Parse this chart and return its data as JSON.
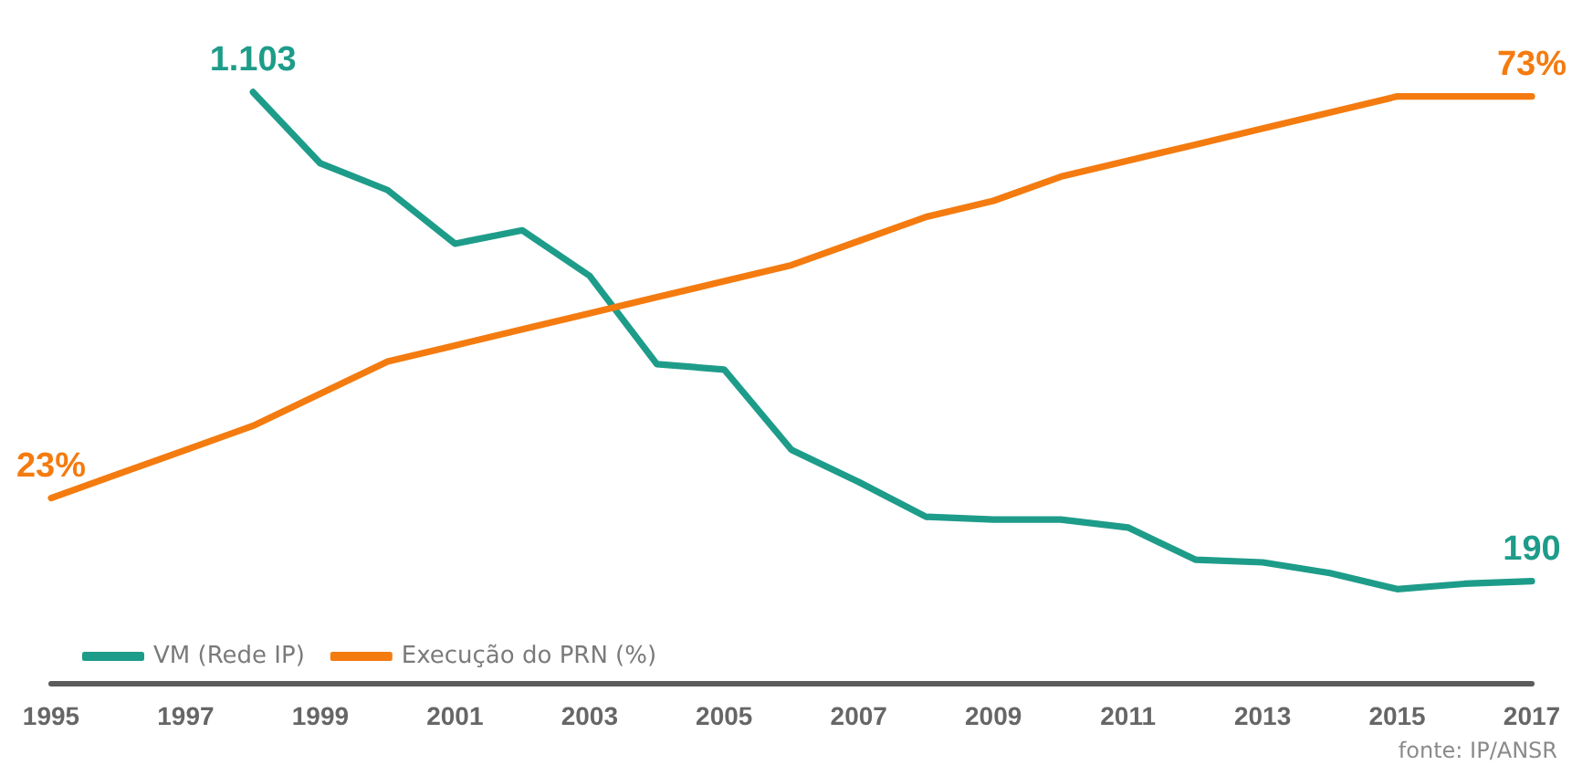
{
  "chart_data": {
    "type": "line",
    "series": [
      {
        "name": "VM (Rede IP)",
        "color": "#1e9c8a",
        "x": [
          1998,
          1999,
          2000,
          2001,
          2002,
          2003,
          2004,
          2005,
          2006,
          2007,
          2008,
          2009,
          2010,
          2011,
          2012,
          2013,
          2014,
          2015,
          2016,
          2017
        ],
        "values": [
          1103,
          970,
          920,
          820,
          845,
          760,
          595,
          585,
          435,
          375,
          310,
          305,
          305,
          290,
          230,
          225,
          205,
          175,
          185,
          190
        ],
        "value_labels": [
          "1.103",
          null,
          null,
          null,
          null,
          null,
          null,
          null,
          null,
          null,
          null,
          null,
          null,
          null,
          null,
          null,
          null,
          null,
          null,
          "190"
        ]
      },
      {
        "name": "Execução do PRN (%)",
        "color": "#f47b0f",
        "axis": "y2",
        "x": [
          1995,
          1996,
          1997,
          1998,
          1999,
          2000,
          2001,
          2002,
          2003,
          2004,
          2005,
          2006,
          2007,
          2008,
          2009,
          2010,
          2011,
          2012,
          2013,
          2014,
          2015,
          2016,
          2017
        ],
        "values": [
          23,
          26,
          29,
          32,
          36,
          40,
          42,
          44,
          46,
          48,
          50,
          52,
          55,
          58,
          60,
          63,
          65,
          67,
          69,
          71,
          73,
          73,
          73
        ],
        "value_labels": [
          "23%",
          null,
          null,
          null,
          null,
          null,
          null,
          null,
          null,
          null,
          null,
          null,
          null,
          null,
          null,
          null,
          null,
          null,
          null,
          null,
          null,
          null,
          "73%"
        ]
      }
    ],
    "xlim": [
      1995,
      2017
    ],
    "xticks": [
      1995,
      1997,
      1999,
      2001,
      2003,
      2005,
      2007,
      2009,
      2011,
      2013,
      2015,
      2017
    ],
    "tick_labels": "x",
    "grid": false,
    "legend": "bottom left",
    "marker": "none",
    "line_style": "solid",
    "annotations": [
      "fonte: IP/ANSR"
    ]
  }
}
